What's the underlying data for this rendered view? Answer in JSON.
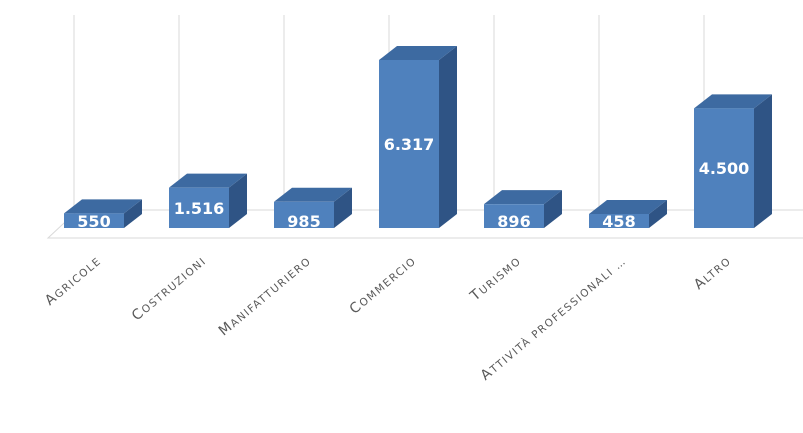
{
  "chart_data": {
    "type": "bar",
    "style": "3d-column",
    "grid": "vertical",
    "legend": "none",
    "categories": [
      "Agricole",
      "Costruzioni",
      "Manifatturiero",
      "Commercio",
      "Turismo",
      "Attività professionali …",
      "Altro"
    ],
    "values": [
      550,
      1516,
      985,
      6317,
      896,
      458,
      4500
    ],
    "data_labels": [
      "550",
      "1.516",
      "985",
      "6.317",
      "896",
      "458",
      "4.500"
    ],
    "colors": {
      "front": "#4f81bd",
      "side": "#2f5485",
      "top": "#3d6aa1",
      "grid": "#d9d9d9",
      "labels": "#595959"
    },
    "title": "",
    "xlabel": "",
    "ylabel": ""
  }
}
